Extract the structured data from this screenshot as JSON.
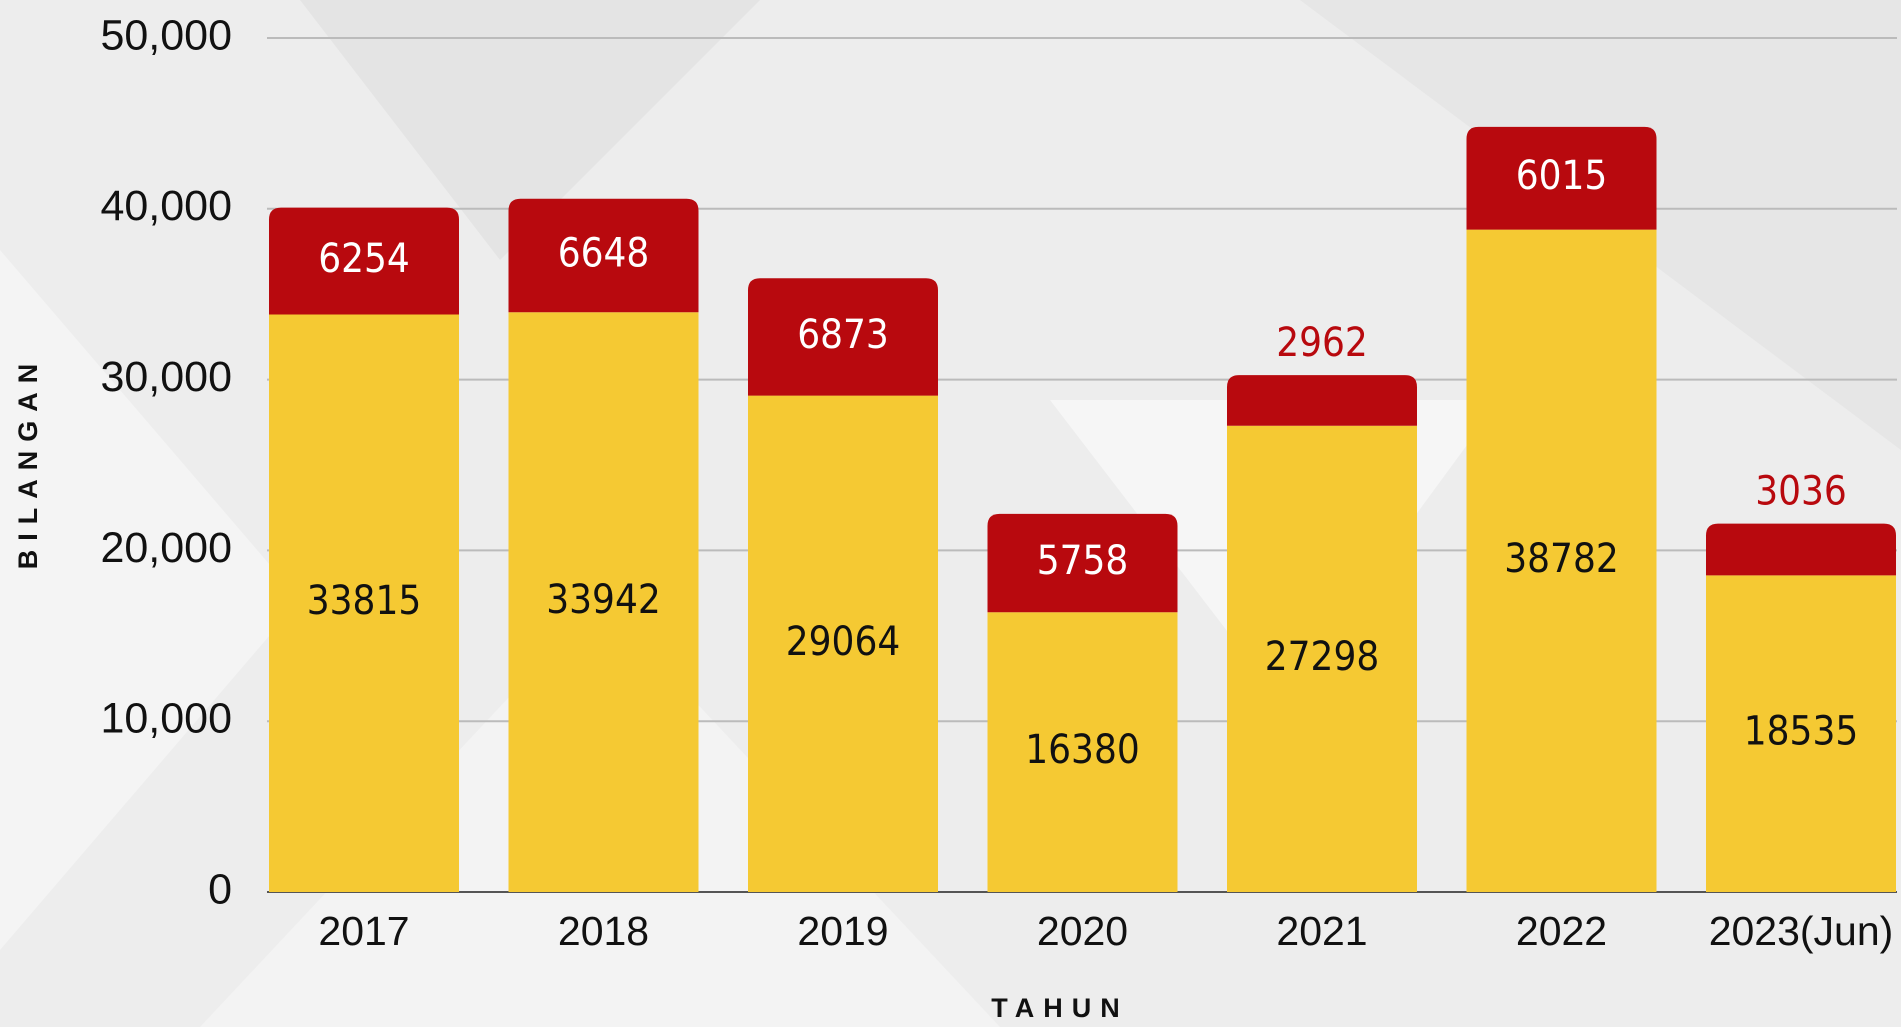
{
  "chart_data": {
    "type": "stacked-bar",
    "categories": [
      "2017",
      "2018",
      "2019",
      "2020",
      "2021",
      "2022",
      "2023(Jun)"
    ],
    "series": [
      {
        "color": "#f5c933",
        "values": [
          33815,
          33942,
          29064,
          16380,
          27298,
          38782,
          18535
        ]
      },
      {
        "color": "#b8090e",
        "values": [
          6254,
          6648,
          6873,
          5758,
          2962,
          6015,
          3036
        ]
      }
    ],
    "ylim": [
      0,
      50000
    ],
    "yticks": [
      0,
      {
        "value": 10000,
        "label": "10,000"
      },
      {
        "value": 20000,
        "label": "20,000"
      },
      {
        "value": 30000,
        "label": "30,000"
      },
      {
        "value": 40000,
        "label": "40,000"
      },
      {
        "value": 50000,
        "label": "50,000"
      }
    ],
    "grid": true,
    "x_label": "TAHUN",
    "y_label": "BILANGAN"
  }
}
